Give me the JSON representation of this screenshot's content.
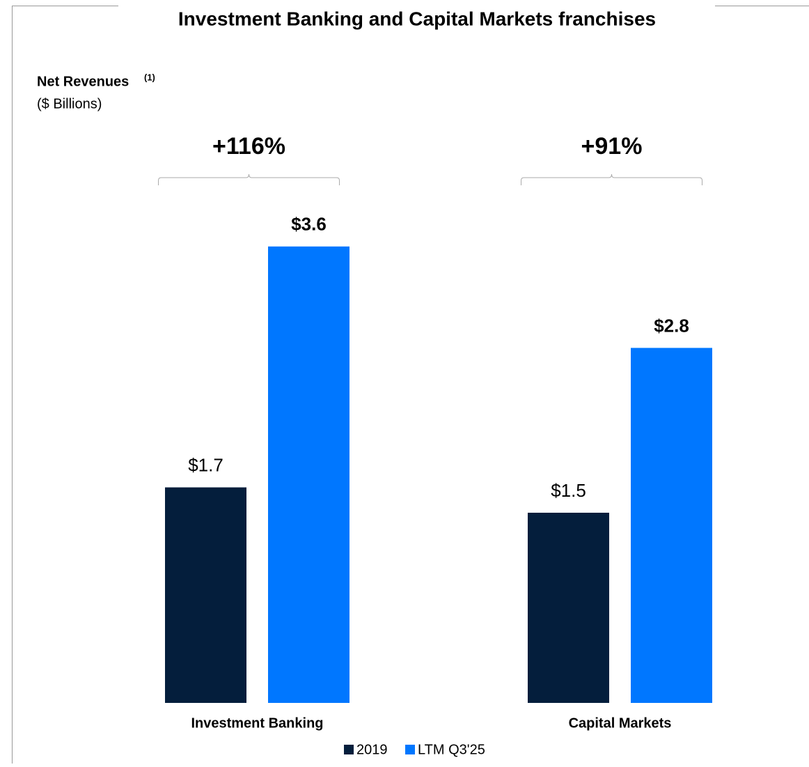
{
  "chart_data": {
    "type": "bar",
    "title": "Investment Banking and Capital Markets franchises",
    "ylabel": "Net Revenues",
    "ylabel_note": "(1)",
    "yunit": "($ Billions)",
    "categories": [
      "Investment Banking",
      "Capital Markets"
    ],
    "growth_labels": [
      "+116%",
      "+91%"
    ],
    "series": [
      {
        "name": "2019",
        "color": "#041e3c",
        "values": [
          1.7,
          1.5
        ],
        "value_labels": [
          "$1.7",
          "$1.5"
        ]
      },
      {
        "name": "LTM Q3'25",
        "color": "#0077ff",
        "values": [
          3.6,
          2.8
        ],
        "value_labels": [
          "$3.6",
          "$2.8"
        ]
      }
    ],
    "ylim": [
      0,
      4
    ]
  }
}
